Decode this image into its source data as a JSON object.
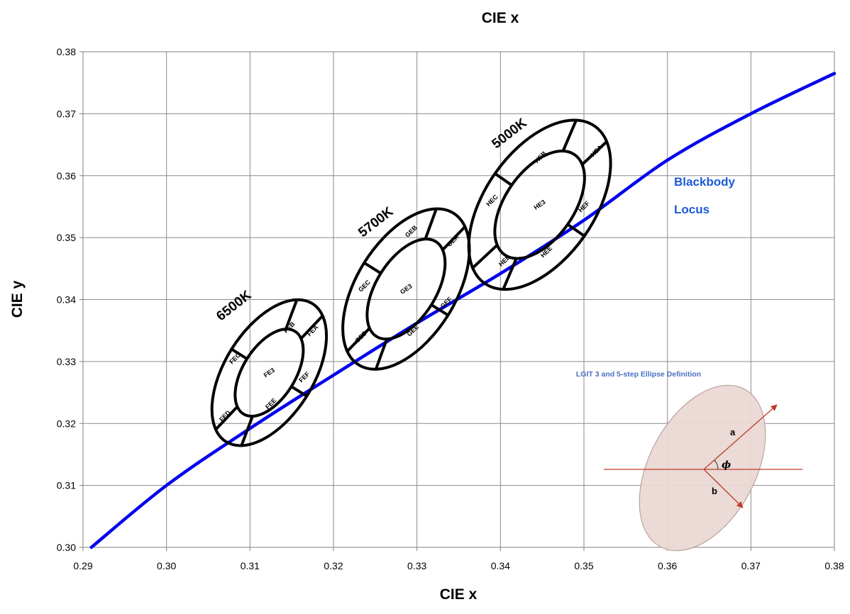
{
  "chart_data": {
    "type": "line",
    "title": "CIE x",
    "xlabel": "CIE x",
    "ylabel": "CIE y",
    "xlim": [
      0.29,
      0.38
    ],
    "ylim": [
      0.3,
      0.38
    ],
    "x_ticks": [
      "0.29",
      "0.30",
      "0.31",
      "0.32",
      "0.33",
      "0.34",
      "0.35",
      "0.36",
      "0.37",
      "0.38"
    ],
    "y_ticks": [
      "0.30",
      "0.31",
      "0.32",
      "0.33",
      "0.34",
      "0.35",
      "0.36",
      "0.37",
      "0.38"
    ],
    "grid": true,
    "locus_label": [
      "Blackbody",
      "Locus"
    ],
    "series": [
      {
        "color": "#0000ee",
        "points": [
          [
            0.291,
            0.3
          ],
          [
            0.3,
            0.31
          ],
          [
            0.31,
            0.3192
          ],
          [
            0.32,
            0.3278
          ],
          [
            0.33,
            0.3362
          ],
          [
            0.34,
            0.3442
          ],
          [
            0.35,
            0.3528
          ],
          [
            0.36,
            0.3625
          ],
          [
            0.37,
            0.37
          ],
          [
            0.38,
            0.3765
          ]
        ]
      }
    ],
    "ellipse_groups": [
      {
        "label": "6500K",
        "center": [
          0.3123,
          0.3282
        ],
        "outer_a": 0.0112,
        "outer_b": 0.0061,
        "inner_a": 0.0067,
        "inner_b": 0.0036,
        "angle_deg": 58,
        "label_pos": [
          0.3065,
          0.3365
        ],
        "center_label": "FE3",
        "bins": [
          {
            "label": "FEA",
            "pos": [
              0.3175,
              0.335
            ]
          },
          {
            "label": "FEB",
            "pos": [
              0.3147,
              0.3355
            ]
          },
          {
            "label": "FEC",
            "pos": [
              0.3082,
              0.3305
            ]
          },
          {
            "label": "FED",
            "pos": [
              0.307,
              0.3212
            ]
          },
          {
            "label": "FEE",
            "pos": [
              0.3125,
              0.3232
            ]
          },
          {
            "label": "FEF",
            "pos": [
              0.3165,
              0.3275
            ]
          }
        ]
      },
      {
        "label": "5700K",
        "center": [
          0.3287,
          0.3417
        ],
        "outer_a": 0.0123,
        "outer_b": 0.0068,
        "inner_a": 0.0077,
        "inner_b": 0.0041,
        "angle_deg": 58,
        "label_pos": [
          0.3235,
          0.35
        ],
        "center_label": "GE3",
        "bins": [
          {
            "label": "GEA",
            "pos": [
              0.3343,
              0.3495
            ]
          },
          {
            "label": "GEB",
            "pos": [
              0.3293,
              0.351
            ]
          },
          {
            "label": "GEC",
            "pos": [
              0.3237,
              0.3422
            ]
          },
          {
            "label": "GED",
            "pos": [
              0.3233,
              0.334
            ]
          },
          {
            "label": "GEE",
            "pos": [
              0.3295,
              0.335
            ]
          },
          {
            "label": "GEF",
            "pos": [
              0.3335,
              0.3395
            ]
          }
        ]
      },
      {
        "label": "5000K",
        "center": [
          0.3447,
          0.3553
        ],
        "outer_a": 0.0132,
        "outer_b": 0.0075,
        "inner_a": 0.0084,
        "inner_b": 0.0047,
        "angle_deg": 55,
        "label_pos": [
          0.3395,
          0.3643
        ],
        "center_label": "HE3",
        "bins": [
          {
            "label": "HEA",
            "pos": [
              0.3515,
              0.364
            ]
          },
          {
            "label": "HEB",
            "pos": [
              0.3448,
              0.363
            ]
          },
          {
            "label": "HEC",
            "pos": [
              0.339,
              0.356
            ]
          },
          {
            "label": "HED",
            "pos": [
              0.3405,
              0.3463
            ]
          },
          {
            "label": "HEE",
            "pos": [
              0.3455,
              0.3477
            ]
          },
          {
            "label": "HEF",
            "pos": [
              0.35,
              0.355
            ]
          }
        ]
      }
    ],
    "inset": {
      "title": "LGIT 3 and 5-step Ellipse Definition",
      "labels": {
        "a": "a",
        "b": "b",
        "phi": "ϕ"
      },
      "colors": {
        "fill": "#ead9d4",
        "stroke": "#b89f9a",
        "arrow": "#c0392b"
      }
    }
  }
}
